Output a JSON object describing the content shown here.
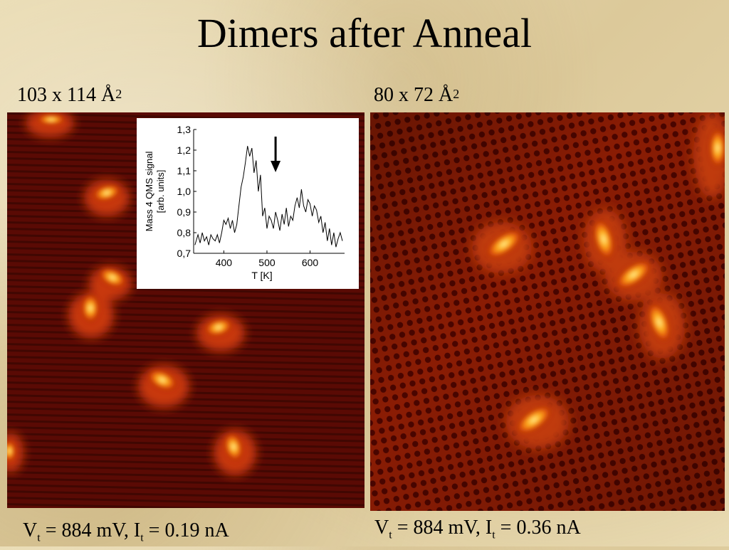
{
  "title": "Dimers after Anneal",
  "left": {
    "size_text": "103 x 114 Å",
    "size_exp": "2",
    "v_label": "V",
    "v_sub": "t",
    "mid": " = 884 mV, I",
    "i_sub": "t",
    "tail": " = 0.19 nA"
  },
  "right": {
    "size_text": "80 x 72 Å",
    "size_exp": "2",
    "v_label": "V",
    "v_sub": "t",
    "mid": " = 884 mV, I",
    "i_sub": "t",
    "tail": " = 0.36 nA"
  },
  "chart_data": {
    "type": "line",
    "xlabel": "T [K]",
    "ylabel_lines": [
      "Mass 4 QMS signal",
      "[arb. units]"
    ],
    "xlim": [
      330,
      680
    ],
    "ylim": [
      0.7,
      1.3
    ],
    "xticks": [
      400,
      500,
      600
    ],
    "yticks": [
      "0,7",
      "0,8",
      "0,9",
      "1,0",
      "1,1",
      "1,2",
      "1,3"
    ],
    "ytick_values": [
      0.7,
      0.8,
      0.9,
      1.0,
      1.1,
      1.2,
      1.3
    ],
    "arrow_at_x": 520,
    "series": [
      {
        "x": [
          333,
          340,
          345,
          350,
          355,
          360,
          365,
          370,
          375,
          380,
          385,
          390,
          395,
          400,
          405,
          410,
          415,
          420,
          425,
          430,
          435,
          440,
          445,
          450,
          455,
          460,
          465,
          470,
          475,
          480,
          485,
          490,
          495,
          500,
          505,
          510,
          515,
          520,
          525,
          530,
          535,
          540,
          545,
          550,
          555,
          560,
          565,
          570,
          575,
          580,
          585,
          590,
          595,
          600,
          605,
          610,
          615,
          620,
          625,
          630,
          635,
          640,
          645,
          650,
          655,
          660,
          665,
          670,
          675
        ],
        "y": [
          0.74,
          0.79,
          0.75,
          0.8,
          0.76,
          0.78,
          0.74,
          0.79,
          0.77,
          0.76,
          0.79,
          0.75,
          0.8,
          0.86,
          0.84,
          0.87,
          0.82,
          0.86,
          0.8,
          0.84,
          0.93,
          1.02,
          1.07,
          1.14,
          1.22,
          1.17,
          1.21,
          1.09,
          1.15,
          1.0,
          1.08,
          0.88,
          0.92,
          0.82,
          0.88,
          0.86,
          0.82,
          0.9,
          0.86,
          0.81,
          0.89,
          0.84,
          0.92,
          0.83,
          0.88,
          0.86,
          0.93,
          0.97,
          0.92,
          1.01,
          0.93,
          0.9,
          0.96,
          0.94,
          0.88,
          0.93,
          0.91,
          0.85,
          0.88,
          0.8,
          0.85,
          0.76,
          0.82,
          0.74,
          0.8,
          0.73,
          0.77,
          0.8,
          0.76
        ]
      }
    ]
  }
}
